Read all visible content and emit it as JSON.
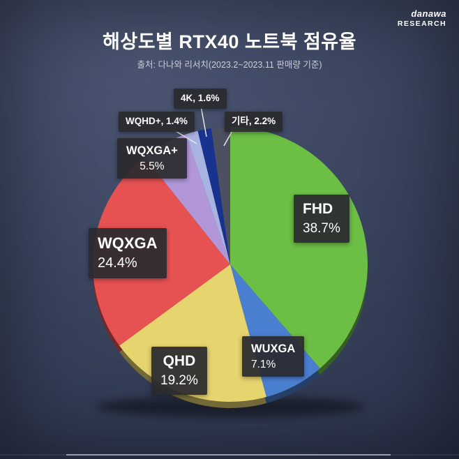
{
  "logo": {
    "brand": "danawa",
    "sub": "RESEARCH"
  },
  "chart_data": {
    "type": "pie",
    "title": "해상도별 RTX40 노트북 점유율",
    "source_note": "출처: 다나와 리서치(2023.2~2023.11 판매량 기준)",
    "unit": "%",
    "start_angle_deg": 0,
    "direction": "clockwise",
    "legend_position": "on-slice-labels",
    "slices": [
      {
        "id": "fhd",
        "label": "FHD",
        "value": 38.7,
        "pct_text": "38.7%",
        "color": "#6cbe45"
      },
      {
        "id": "wuxga",
        "label": "WUXGA",
        "value": 7.1,
        "pct_text": "7.1%",
        "color": "#4a7fd0"
      },
      {
        "id": "qhd",
        "label": "QHD",
        "value": 19.2,
        "pct_text": "19.2%",
        "color": "#e6d46e"
      },
      {
        "id": "wqxga",
        "label": "WQXGA",
        "value": 24.4,
        "pct_text": "24.4%",
        "color": "#e65252"
      },
      {
        "id": "wqxga-plus",
        "label": "WQXGA+",
        "value": 5.5,
        "pct_text": "5.5%",
        "color": "#b297d8"
      },
      {
        "id": "wqhd-plus",
        "label": "WQHD+",
        "value": 1.4,
        "pct_text": "1.4%",
        "callout_text": "WQHD+, 1.4%",
        "color": "#a9b3e2"
      },
      {
        "id": "4k",
        "label": "4K",
        "value": 1.6,
        "pct_text": "1.6%",
        "callout_text": "4K, 1.6%",
        "color": "#17338f"
      },
      {
        "id": "etc",
        "label": "기타",
        "value": 2.2,
        "pct_text": "2.2%",
        "callout_text": "기타, 2.2%",
        "color": "#4d5060"
      }
    ]
  }
}
